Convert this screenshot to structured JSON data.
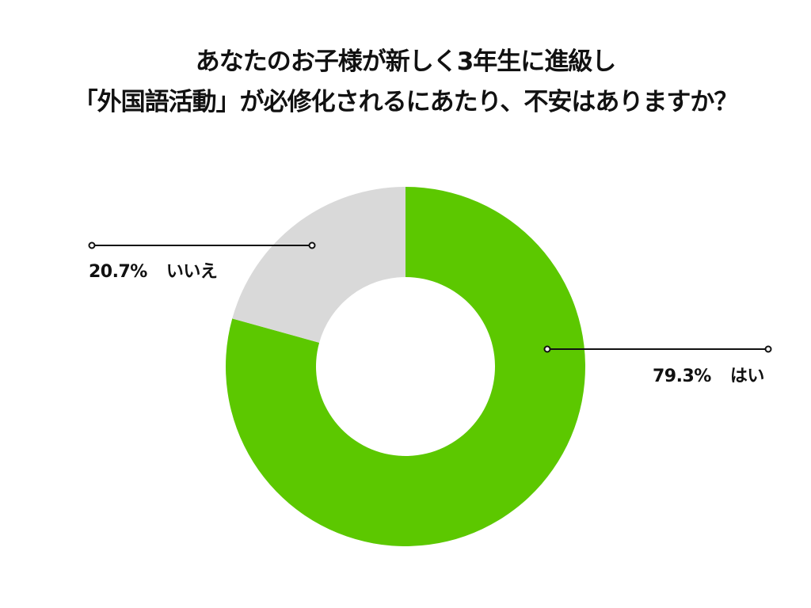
{
  "title": {
    "line1": "あなたのお子様が新しく3年生に進級し",
    "line2": "「外国語活動」が必修化されるにあたり、不安はありますか？"
  },
  "labels": {
    "yes": {
      "pct": "79.3%",
      "text": "はい"
    },
    "no": {
      "pct": "20.7%",
      "text": "いいえ"
    }
  },
  "colors": {
    "yes": "#5cc800",
    "no": "#d9d9d9"
  },
  "chart_data": {
    "type": "pie",
    "variant": "donut",
    "title": "あなたのお子様が新しく3年生に進級し「外国語活動」が必修化されるにあたり、不安はありますか？",
    "categories": [
      "はい",
      "いいえ"
    ],
    "values": [
      79.3,
      20.7
    ],
    "unit": "%",
    "colors": [
      "#5cc800",
      "#d9d9d9"
    ],
    "start_angle": "12 o'clock, clockwise",
    "legend": "callout labels with leader lines"
  }
}
